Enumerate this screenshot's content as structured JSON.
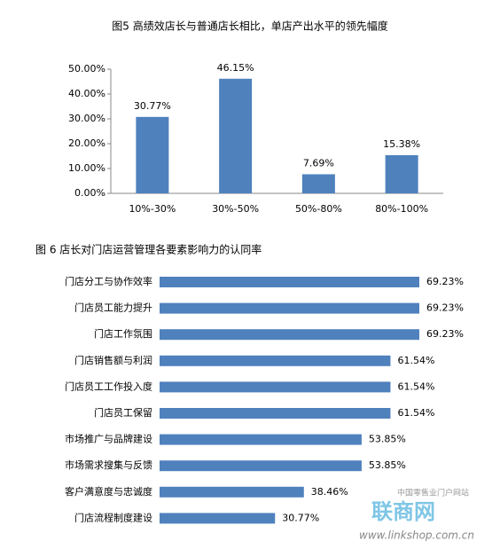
{
  "chart_data": [
    {
      "type": "bar",
      "title": "图5  高绩效店长与普通店长相比，单店产出水平的领先幅度",
      "categories": [
        "10%-30%",
        "30%-50%",
        "50%-80%",
        "80%-100%"
      ],
      "values": [
        30.77,
        46.15,
        7.69,
        15.38
      ],
      "value_labels": [
        "30.77%",
        "46.15%",
        "7.69%",
        "15.38%"
      ],
      "color": "#4f81bd",
      "ylim": [
        0,
        50
      ],
      "yticks": [
        {
          "value": 0,
          "label": "0.00%"
        },
        {
          "value": 10,
          "label": "10.00%"
        },
        {
          "value": 20,
          "label": "20.00%"
        },
        {
          "value": 30,
          "label": "30.00%"
        },
        {
          "value": 40,
          "label": "40.00%"
        },
        {
          "value": 50,
          "label": "50.00%"
        }
      ]
    },
    {
      "type": "hbar",
      "title": "图 6  店长对门店运营管理各要素影响力的认同率",
      "categories": [
        "门店分工与协作效率",
        "门店员工能力提升",
        "门店工作氛围",
        "门店销售额与利润",
        "门店员工工作投入度",
        "门店员工保留",
        "市场推广与品牌建设",
        "市场需求搜集与反馈",
        "客户满意度与忠诚度",
        "门店流程制度建设"
      ],
      "values": [
        69.23,
        69.23,
        69.23,
        61.54,
        61.54,
        61.54,
        53.85,
        53.85,
        38.46,
        30.77
      ],
      "value_labels": [
        "69.23%",
        "69.23%",
        "69.23%",
        "61.54%",
        "61.54%",
        "61.54%",
        "53.85%",
        "53.85%",
        "38.46%",
        "30.77%"
      ],
      "color": "#4f81bd"
    }
  ],
  "watermark": {
    "tagline": "中国零售业门户网站",
    "logo": "联商网",
    "url": "www.linkshop.com.cn"
  }
}
